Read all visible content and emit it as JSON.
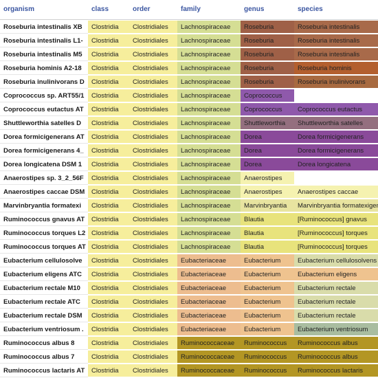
{
  "headers": [
    "organism",
    "class",
    "order",
    "family",
    "genus",
    "species"
  ],
  "colors": {
    "class": "#f6ee9c",
    "order": "#f6ee9c",
    "lachnospiraceae": "#d5de94",
    "eubacteriaceae": "#edbd8f",
    "ruminococcaceae": "#b39624",
    "roseburia_genus": "#9f6047",
    "roseburia_species": "#a86a4a",
    "roseburia_hominis": "#b35f2e",
    "roseburia_inulinivorans": "#a86a40",
    "coprococcus": "#8f59ab",
    "shuttleworthia": "#946f7f",
    "dorea": "#8a4a9a",
    "anaerostipes": "#f5f2b0",
    "marvinbryantia": "#e8e4a0",
    "blautia": "#e8e37c",
    "eubacterium": "#efc38f",
    "eubacterium_species": "#d9dcaa",
    "eubacterium_ventriosum": "#a9bda0",
    "white": "#ffffff"
  },
  "rows": [
    {
      "organism": "Roseburia intestinalis XB",
      "class": "Clostridia",
      "order": "Clostridiales",
      "family": "Lachnospiraceae",
      "genus": "Roseburia",
      "species": "Roseburia intestinalis",
      "fam_color": "#d5de94",
      "gen_color": "#9f6047",
      "sp_color": "#a86a4a"
    },
    {
      "organism": "Roseburia intestinalis L1-",
      "class": "Clostridia",
      "order": "Clostridiales",
      "family": "Lachnospiraceae",
      "genus": "Roseburia",
      "species": "Roseburia intestinalis",
      "fam_color": "#d5de94",
      "gen_color": "#9f6047",
      "sp_color": "#a86a4a"
    },
    {
      "organism": "Roseburia intestinalis M5",
      "class": "Clostridia",
      "order": "Clostridiales",
      "family": "Lachnospiraceae",
      "genus": "Roseburia",
      "species": "Roseburia intestinalis",
      "fam_color": "#d5de94",
      "gen_color": "#9f6047",
      "sp_color": "#a86a4a"
    },
    {
      "organism": "Roseburia hominis A2-18",
      "class": "Clostridia",
      "order": "Clostridiales",
      "family": "Lachnospiraceae",
      "genus": "Roseburia",
      "species": "Roseburia hominis",
      "fam_color": "#d5de94",
      "gen_color": "#9f6047",
      "sp_color": "#b35f2e"
    },
    {
      "organism": "Roseburia inulinivorans D",
      "class": "Clostridia",
      "order": "Clostridiales",
      "family": "Lachnospiraceae",
      "genus": "Roseburia",
      "species": "Roseburia inulinivorans",
      "fam_color": "#d5de94",
      "gen_color": "#9f6047",
      "sp_color": "#a86a40"
    },
    {
      "organism": "Coprococcus sp. ART55/1",
      "class": "Clostridia",
      "order": "Clostridiales",
      "family": "Lachnospiraceae",
      "genus": "Coprococcus",
      "species": "",
      "fam_color": "#d5de94",
      "gen_color": "#8f59ab",
      "sp_color": "#ffffff"
    },
    {
      "organism": "Coprococcus eutactus AT",
      "class": "Clostridia",
      "order": "Clostridiales",
      "family": "Lachnospiraceae",
      "genus": "Coprococcus",
      "species": "Coprococcus eutactus",
      "fam_color": "#d5de94",
      "gen_color": "#8f59ab",
      "sp_color": "#8f59ab"
    },
    {
      "organism": "Shuttleworthia satelles D",
      "class": "Clostridia",
      "order": "Clostridiales",
      "family": "Lachnospiraceae",
      "genus": "Shuttleworthia",
      "species": "Shuttleworthia satelles",
      "fam_color": "#d5de94",
      "gen_color": "#946f7f",
      "sp_color": "#946f7f"
    },
    {
      "organism": "Dorea formicigenerans AT",
      "class": "Clostridia",
      "order": "Clostridiales",
      "family": "Lachnospiraceae",
      "genus": "Dorea",
      "species": "Dorea formicigenerans",
      "fam_color": "#d5de94",
      "gen_color": "#8a4a9a",
      "sp_color": "#8a4a9a"
    },
    {
      "organism": "Dorea formicigenerans 4_",
      "class": "Clostridia",
      "order": "Clostridiales",
      "family": "Lachnospiraceae",
      "genus": "Dorea",
      "species": "Dorea formicigenerans",
      "fam_color": "#d5de94",
      "gen_color": "#8a4a9a",
      "sp_color": "#8a4a9a"
    },
    {
      "organism": "Dorea longicatena DSM 1",
      "class": "Clostridia",
      "order": "Clostridiales",
      "family": "Lachnospiraceae",
      "genus": "Dorea",
      "species": "Dorea longicatena",
      "fam_color": "#d5de94",
      "gen_color": "#8a4a9a",
      "sp_color": "#8a4a9a"
    },
    {
      "organism": "Anaerostipes sp. 3_2_56F",
      "class": "Clostridia",
      "order": "Clostridiales",
      "family": "Lachnospiraceae",
      "genus": "Anaerostipes",
      "species": "",
      "fam_color": "#d5de94",
      "gen_color": "#f5f2b0",
      "sp_color": "#ffffff"
    },
    {
      "organism": "Anaerostipes caccae DSM",
      "class": "Clostridia",
      "order": "Clostridiales",
      "family": "Lachnospiraceae",
      "genus": "Anaerostipes",
      "species": "Anaerostipes caccae",
      "fam_color": "#d5de94",
      "gen_color": "#f5f2b0",
      "sp_color": "#f5f2b0"
    },
    {
      "organism": "Marvinbryantia formatexi",
      "class": "Clostridia",
      "order": "Clostridiales",
      "family": "Lachnospiraceae",
      "genus": "Marvinbryantia",
      "species": "Marvinbryantia formatexigens",
      "fam_color": "#d5de94",
      "gen_color": "#e8e4a0",
      "sp_color": "#e8e4a0"
    },
    {
      "organism": "Ruminococcus gnavus AT",
      "class": "Clostridia",
      "order": "Clostridiales",
      "family": "Lachnospiraceae",
      "genus": "Blautia",
      "species": "[Ruminococcus] gnavus",
      "fam_color": "#d5de94",
      "gen_color": "#e8e37c",
      "sp_color": "#e8e37c"
    },
    {
      "organism": "Ruminococcus torques L2",
      "class": "Clostridia",
      "order": "Clostridiales",
      "family": "Lachnospiraceae",
      "genus": "Blautia",
      "species": "[Ruminococcus] torques",
      "fam_color": "#d5de94",
      "gen_color": "#e8e37c",
      "sp_color": "#e8e37c"
    },
    {
      "organism": "Ruminococcus torques AT",
      "class": "Clostridia",
      "order": "Clostridiales",
      "family": "Lachnospiraceae",
      "genus": "Blautia",
      "species": "[Ruminococcus] torques",
      "fam_color": "#d5de94",
      "gen_color": "#e8e37c",
      "sp_color": "#e8e37c"
    },
    {
      "organism": "Eubacterium cellulosolve",
      "class": "Clostridia",
      "order": "Clostridiales",
      "family": "Eubacteriaceae",
      "genus": "Eubacterium",
      "species": "Eubacterium cellulosolvens",
      "fam_color": "#edbd8f",
      "gen_color": "#efc38f",
      "sp_color": "#d9dcaa"
    },
    {
      "organism": "Eubacterium eligens ATC",
      "class": "Clostridia",
      "order": "Clostridiales",
      "family": "Eubacteriaceae",
      "genus": "Eubacterium",
      "species": "Eubacterium eligens",
      "fam_color": "#edbd8f",
      "gen_color": "#efc38f",
      "sp_color": "#efc38f"
    },
    {
      "organism": "Eubacterium rectale M10",
      "class": "Clostridia",
      "order": "Clostridiales",
      "family": "Eubacteriaceae",
      "genus": "Eubacterium",
      "species": "Eubacterium rectale",
      "fam_color": "#edbd8f",
      "gen_color": "#efc38f",
      "sp_color": "#d9dcaa"
    },
    {
      "organism": "Eubacterium rectale ATC",
      "class": "Clostridia",
      "order": "Clostridiales",
      "family": "Eubacteriaceae",
      "genus": "Eubacterium",
      "species": "Eubacterium rectale",
      "fam_color": "#edbd8f",
      "gen_color": "#efc38f",
      "sp_color": "#d9dcaa"
    },
    {
      "organism": "Eubacterium rectale DSM",
      "class": "Clostridia",
      "order": "Clostridiales",
      "family": "Eubacteriaceae",
      "genus": "Eubacterium",
      "species": "Eubacterium rectale",
      "fam_color": "#edbd8f",
      "gen_color": "#efc38f",
      "sp_color": "#d9dcaa"
    },
    {
      "organism": "Eubacterium ventriosum .",
      "class": "Clostridia",
      "order": "Clostridiales",
      "family": "Eubacteriaceae",
      "genus": "Eubacterium",
      "species": "Eubacterium ventriosum",
      "fam_color": "#edbd8f",
      "gen_color": "#efc38f",
      "sp_color": "#a9bda0"
    },
    {
      "organism": "Ruminococcus albus 8",
      "class": "Clostridia",
      "order": "Clostridiales",
      "family": "Ruminococcaceae",
      "genus": "Ruminococcus",
      "species": "Ruminococcus albus",
      "fam_color": "#b39624",
      "gen_color": "#b39624",
      "sp_color": "#b39624"
    },
    {
      "organism": "Ruminococcus albus 7",
      "class": "Clostridia",
      "order": "Clostridiales",
      "family": "Ruminococcaceae",
      "genus": "Ruminococcus",
      "species": "Ruminococcus albus",
      "fam_color": "#b39624",
      "gen_color": "#b39624",
      "sp_color": "#b39624"
    },
    {
      "organism": "Ruminococcus lactaris AT",
      "class": "Clostridia",
      "order": "Clostridiales",
      "family": "Ruminococcaceae",
      "genus": "Ruminococcus",
      "species": "Ruminococcus lactaris",
      "fam_color": "#b39624",
      "gen_color": "#b39624",
      "sp_color": "#b39624"
    }
  ]
}
